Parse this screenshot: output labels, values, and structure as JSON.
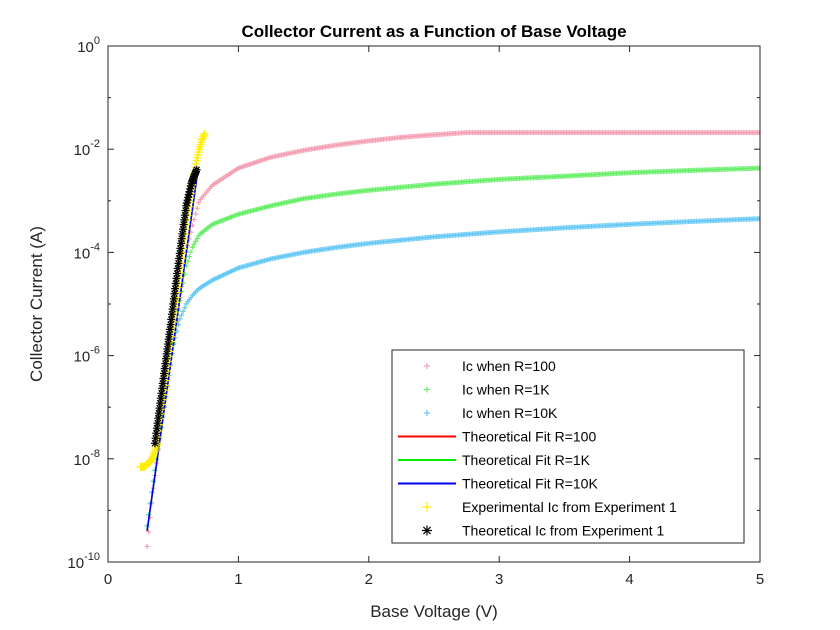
{
  "chart_data": {
    "type": "scatter",
    "title": "Collector Current as a Function of Base Voltage",
    "xlabel": "Base Voltage (V)",
    "ylabel": "Collector Current (A)",
    "xlim": [
      0,
      5
    ],
    "ylim": [
      1e-10,
      1
    ],
    "yscale": "log",
    "x_ticks": [
      "0",
      "1",
      "2",
      "3",
      "4",
      "5"
    ],
    "y_ticks": [
      {
        "base": "10",
        "exp": "-10",
        "value": 1e-10
      },
      {
        "base": "10",
        "exp": "-8",
        "value": 1e-08
      },
      {
        "base": "10",
        "exp": "-6",
        "value": 1e-06
      },
      {
        "base": "10",
        "exp": "-4",
        "value": 0.0001
      },
      {
        "base": "10",
        "exp": "-2",
        "value": 0.01
      },
      {
        "base": "10",
        "exp": "0",
        "value": 1
      }
    ],
    "legend_position": "bottom-right",
    "series": [
      {
        "name": "Ic when R=100",
        "marker": "plus",
        "color": "#f4a0b4",
        "x": [
          0.3,
          0.35,
          0.4,
          0.45,
          0.5,
          0.55,
          0.6,
          0.65,
          0.7,
          0.8,
          1.0,
          1.25,
          1.5,
          1.75,
          2.0,
          2.25,
          2.5,
          2.75,
          3.0,
          3.5,
          4.0,
          4.5,
          5.0
        ],
        "y": [
          2e-10,
          3e-09,
          3e-08,
          2e-07,
          1.5e-06,
          1.2e-05,
          0.0001,
          0.00035,
          0.001,
          0.002,
          0.0043,
          0.007,
          0.0095,
          0.012,
          0.0145,
          0.017,
          0.019,
          0.021,
          0.021,
          0.021,
          0.021,
          0.021,
          0.021
        ]
      },
      {
        "name": "Ic when R=1K",
        "marker": "plus",
        "color": "#66ee66",
        "x": [
          0.3,
          0.35,
          0.4,
          0.45,
          0.5,
          0.55,
          0.6,
          0.65,
          0.7,
          0.8,
          1.0,
          1.25,
          1.5,
          1.75,
          2.0,
          2.5,
          3.0,
          3.5,
          4.0,
          4.5,
          5.0
        ],
        "y": [
          5e-10,
          4e-09,
          3e-08,
          2e-07,
          1.5e-06,
          1.1e-05,
          5.5e-05,
          0.00013,
          0.00022,
          0.00035,
          0.00055,
          0.0008,
          0.0011,
          0.00135,
          0.0016,
          0.0021,
          0.0026,
          0.003,
          0.0035,
          0.0039,
          0.0043
        ]
      },
      {
        "name": "Ic when R=10K",
        "marker": "plus",
        "color": "#66c8f4",
        "x": [
          0.3,
          0.35,
          0.4,
          0.45,
          0.5,
          0.55,
          0.6,
          0.65,
          0.7,
          0.8,
          1.0,
          1.25,
          1.5,
          1.75,
          2.0,
          2.5,
          3.0,
          3.5,
          4.0,
          4.5,
          5.0
        ],
        "y": [
          5e-10,
          4e-09,
          3e-08,
          2e-07,
          1.5e-06,
          5e-06,
          1e-05,
          1.5e-05,
          2e-05,
          2.9e-05,
          5e-05,
          7.5e-05,
          0.0001,
          0.000125,
          0.00015,
          0.0002,
          0.00025,
          0.0003,
          0.00035,
          0.0004,
          0.00045
        ]
      },
      {
        "name": "Theoretical Fit R=100",
        "marker": "line",
        "color": "#ff0000",
        "x": [
          0.3,
          0.69
        ],
        "y": [
          4e-10,
          0.004
        ]
      },
      {
        "name": "Theoretical Fit R=1K",
        "marker": "line",
        "color": "#00ee00",
        "x": [
          0.3,
          0.69
        ],
        "y": [
          4e-10,
          0.004
        ]
      },
      {
        "name": "Theoretical Fit R=10K",
        "marker": "line",
        "color": "#0000ee",
        "x": [
          0.3,
          0.69
        ],
        "y": [
          4e-10,
          0.004
        ]
      },
      {
        "name": "Experimental Ic from Experiment 1",
        "marker": "plus",
        "color": "#ffee00",
        "x": [
          0.25,
          0.28,
          0.3,
          0.33,
          0.35,
          0.38,
          0.4,
          0.45,
          0.5,
          0.55,
          0.6,
          0.65,
          0.68,
          0.7,
          0.72,
          0.74
        ],
        "y": [
          7e-09,
          7e-09,
          8e-09,
          9e-09,
          1.2e-08,
          2e-08,
          6e-08,
          5e-07,
          4.5e-06,
          4e-05,
          0.00035,
          0.0025,
          0.006,
          0.01,
          0.015,
          0.02
        ]
      },
      {
        "name": "Theoretical Ic from Experiment 1",
        "marker": "star",
        "color": "#000000",
        "x": [
          0.36,
          0.4,
          0.44,
          0.48,
          0.52,
          0.56,
          0.6,
          0.64,
          0.68
        ],
        "y": [
          2e-08,
          1.2e-07,
          7e-07,
          4e-06,
          2.5e-05,
          0.00015,
          0.0008,
          0.0022,
          0.004
        ]
      }
    ]
  }
}
